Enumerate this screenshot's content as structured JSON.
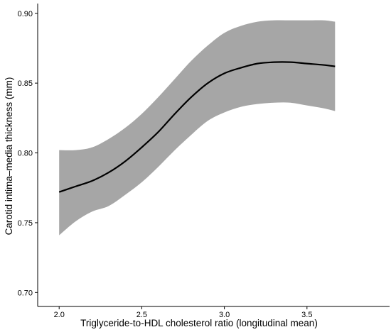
{
  "chart_data": {
    "type": "line",
    "title": "",
    "xlabel": "Triglyceride-to-HDL cholesterol ratio (longitudinal mean)",
    "ylabel": "Carotid intima–media thickness (mm)",
    "xlim": [
      1.87,
      4.0
    ],
    "ylim": [
      0.69,
      0.907
    ],
    "x_ticks": [
      2.0,
      2.5,
      3.0,
      3.5
    ],
    "x_tick_labels": [
      "2.0",
      "2.5",
      "3.0",
      "3.5"
    ],
    "y_ticks": [
      0.7,
      0.75,
      0.8,
      0.85,
      0.9
    ],
    "y_tick_labels": [
      "0.70",
      "0.75",
      "0.80",
      "0.85",
      "0.90"
    ],
    "grid": false,
    "series": [
      {
        "x": [
          2.0,
          2.1,
          2.2,
          2.3,
          2.4,
          2.5,
          2.6,
          2.7,
          2.8,
          2.9,
          3.0,
          3.1,
          3.2,
          3.3,
          3.4,
          3.5,
          3.6,
          3.67
        ],
        "values": [
          0.772,
          0.776,
          0.78,
          0.786,
          0.794,
          0.804,
          0.815,
          0.828,
          0.84,
          0.85,
          0.857,
          0.861,
          0.864,
          0.865,
          0.865,
          0.864,
          0.863,
          0.862
        ],
        "lower": [
          0.741,
          0.751,
          0.758,
          0.762,
          0.77,
          0.779,
          0.79,
          0.802,
          0.813,
          0.823,
          0.829,
          0.833,
          0.835,
          0.836,
          0.836,
          0.834,
          0.832,
          0.83
        ],
        "upper": [
          0.802,
          0.802,
          0.804,
          0.81,
          0.818,
          0.828,
          0.84,
          0.853,
          0.866,
          0.877,
          0.886,
          0.891,
          0.894,
          0.895,
          0.895,
          0.895,
          0.895,
          0.894
        ]
      }
    ],
    "colors": {
      "line": "#000000",
      "band": "#a6a6a6",
      "axes": "#000000"
    }
  }
}
